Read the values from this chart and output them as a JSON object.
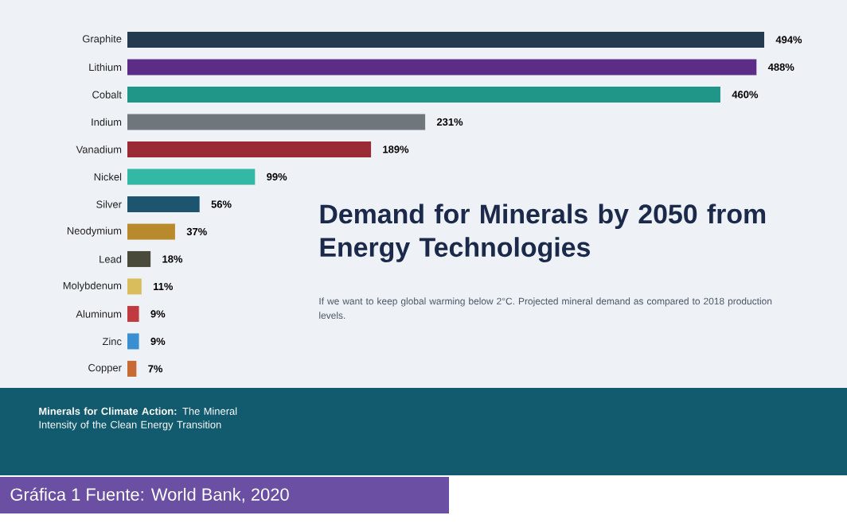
{
  "chart_data": {
    "type": "bar",
    "orientation": "horizontal",
    "title": "Demand for Minerals by 2050 from Energy Technologies",
    "subtitle": "If we want to keep global warming below 2°C. Projected mineral demand as compared to 2018 production levels.",
    "categories": [
      "Graphite",
      "Lithium",
      "Cobalt",
      "Indium",
      "Vanadium",
      "Nickel",
      "Silver",
      "Neodymium",
      "Lead",
      "Molybdenum",
      "Aluminum",
      "Zinc",
      "Copper"
    ],
    "values": [
      494,
      488,
      460,
      231,
      189,
      99,
      56,
      37,
      18,
      11,
      9,
      9,
      7
    ],
    "value_labels": [
      "494%",
      "488%",
      "460%",
      "231%",
      "189%",
      "99%",
      "56%",
      "37%",
      "18%",
      "11%",
      "9%",
      "9%",
      "7%"
    ],
    "colors": [
      "#243b4f",
      "#5b2d86",
      "#1f9688",
      "#6f767c",
      "#9a2a33",
      "#33b8a6",
      "#1d5570",
      "#b98a2c",
      "#4a4a3a",
      "#d9bd5c",
      "#c03a3f",
      "#3a8fd0",
      "#c86a33"
    ],
    "annotations": [
      "**Minerals for Climate Action:** The Mineral Intensity of the Clean Energy Transition",
      "Gráfica 1 Fuente: World Bank, 2020"
    ]
  }
}
